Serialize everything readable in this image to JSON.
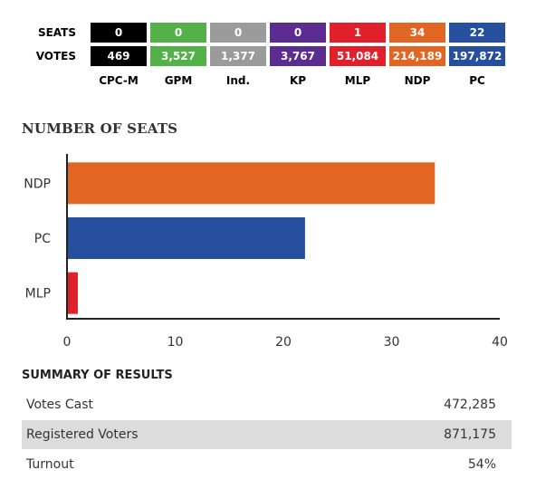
{
  "table": {
    "row_labels": {
      "seats": "SEATS",
      "votes": "VOTES"
    },
    "parties": [
      {
        "name": "CPC-M",
        "seats": "0",
        "votes": "469",
        "color": "#000000"
      },
      {
        "name": "GPM",
        "seats": "0",
        "votes": "3,527",
        "color": "#54b048"
      },
      {
        "name": "Ind.",
        "seats": "0",
        "votes": "1,377",
        "color": "#9b9b9b"
      },
      {
        "name": "KP",
        "seats": "0",
        "votes": "3,767",
        "color": "#5c2d91"
      },
      {
        "name": "MLP",
        "seats": "1",
        "votes": "51,084",
        "color": "#e0212b"
      },
      {
        "name": "NDP",
        "seats": "34",
        "votes": "214,189",
        "color": "#e16624"
      },
      {
        "name": "PC",
        "seats": "22",
        "votes": "197,872",
        "color": "#26509e"
      }
    ]
  },
  "chart_data": {
    "type": "bar",
    "orientation": "horizontal",
    "title": "NUMBER OF SEATS",
    "categories": [
      "NDP",
      "PC",
      "MLP"
    ],
    "values": [
      34,
      22,
      1
    ],
    "colors": [
      "#e16624",
      "#26509e",
      "#e0212b"
    ],
    "xlim": [
      0,
      40
    ],
    "x_ticks": [
      0,
      10,
      20,
      30,
      40
    ],
    "xlabel": "",
    "ylabel": "",
    "grid": false
  },
  "summary": {
    "title": "SUMMARY OF RESULTS",
    "rows": [
      {
        "label": "Votes Cast",
        "value": "472,285"
      },
      {
        "label": "Registered Voters",
        "value": "871,175"
      },
      {
        "label": "Turnout",
        "value": "54%"
      }
    ]
  }
}
